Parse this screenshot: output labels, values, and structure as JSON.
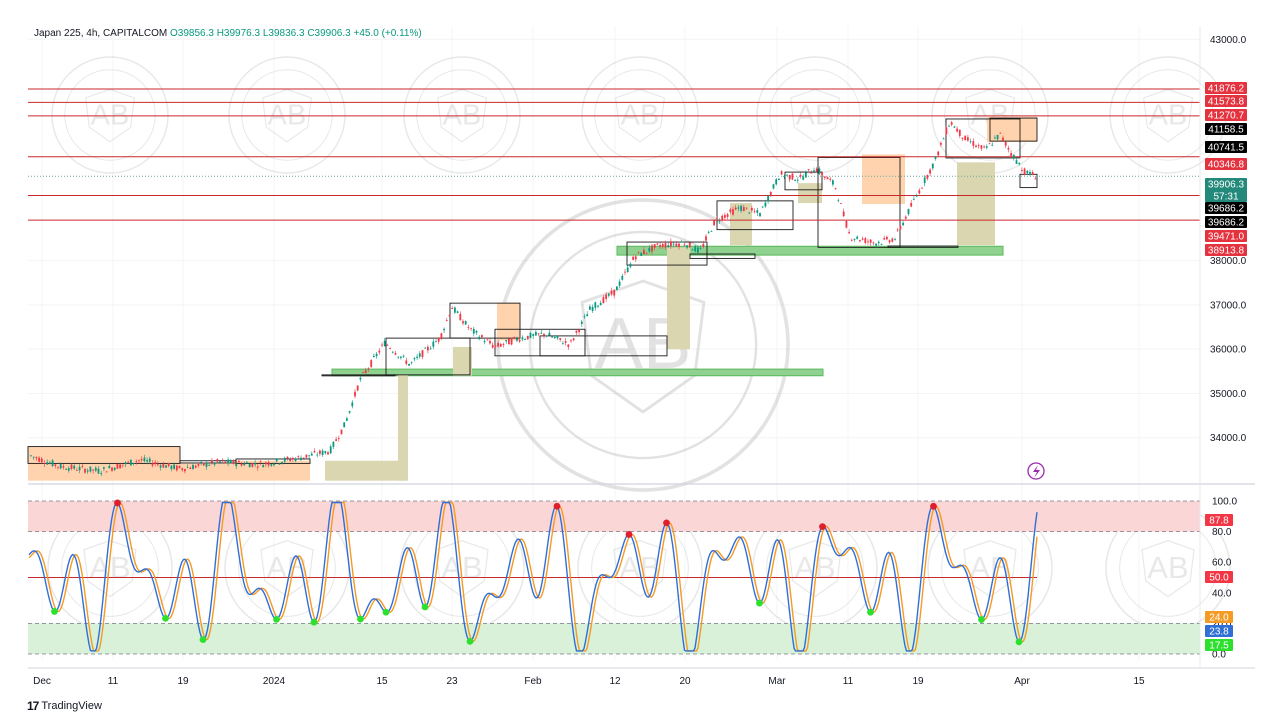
{
  "header": {
    "symbol": "Japan 225, 4h, CAPITALCOM",
    "ohlc": "O39856.3 H39976.3 L39836.3 C39906.3 +45.0 (+0.11%)"
  },
  "footer": {
    "brand": "TradingView",
    "logo": "17"
  },
  "watermark": {
    "arc_text": "ARABIAN BUSINESS ACADEMY",
    "monogram": "AB",
    "arabic_text": "أكاديمية عبد الرحمن"
  },
  "colors": {
    "up": "#089981",
    "down": "#f23645",
    "level_line": "#c9282d",
    "level_label_red": "#e5323f",
    "level_label_black": "#000000",
    "current_price_label": "#22897b",
    "zone_green": "#8fd18f",
    "zone_orange": "#ffd3ae",
    "zone_olive": "#d9d6b0",
    "stoch_k": "#2f6fd6",
    "stoch_d": "#f59a23",
    "overbought_band": "#fbd6d6",
    "oversold_band": "#d8f1d8",
    "signal_red": "#e01f2c",
    "signal_green": "#2ee02e"
  },
  "price_panel": {
    "y_axis": {
      "min": 33000,
      "max": 43300,
      "ticks": [
        "43000.0",
        "38000.0",
        "37000.0",
        "36000.0",
        "35000.0",
        "34000.0"
      ]
    },
    "levels": [
      {
        "value": 41876.2,
        "label": "41876.2",
        "style": "red"
      },
      {
        "value": 41573.8,
        "label": "41573.8",
        "style": "red"
      },
      {
        "value": 41270.7,
        "label": "41270.7",
        "style": "red"
      },
      {
        "value": 41158.5,
        "label": "41158.5",
        "style": "black"
      },
      {
        "value": 40741.5,
        "label": "40741.5",
        "style": "black"
      },
      {
        "value": 40346.8,
        "label": "40346.8",
        "style": "red"
      },
      {
        "value": 39686.2,
        "label": "39686.2",
        "style": "black"
      },
      {
        "value": 39686.2,
        "label": "39686.2",
        "style": "black"
      },
      {
        "value": 39471.0,
        "label": "39471.0",
        "style": "red"
      },
      {
        "value": 38913.8,
        "label": "38913.8",
        "style": "red"
      }
    ],
    "current_price": {
      "value": 39906.3,
      "label": "39906.3",
      "countdown": "57:31"
    }
  },
  "oscillator_panel": {
    "y_axis": {
      "min": 0,
      "max": 100,
      "ticks": [
        "100.0",
        "80.0",
        "60.0",
        "40.0",
        "20.0",
        "0.0"
      ]
    },
    "labels": [
      {
        "value": 87.8,
        "label": "87.8",
        "color": "#f23645"
      },
      {
        "value": 50.0,
        "label": "50.0",
        "color": "#f23645"
      },
      {
        "value": 24.0,
        "label": "24.0",
        "color": "#f59a23"
      },
      {
        "value": 23.8,
        "label": "23.8",
        "color": "#2f6fd6"
      },
      {
        "value": 17.5,
        "label": "17.5",
        "color": "#2ee02e"
      }
    ]
  },
  "x_axis": {
    "ticks": [
      "Dec",
      "11",
      "19",
      "2024",
      "15",
      "23",
      "Feb",
      "12",
      "20",
      "Mar",
      "11",
      "19",
      "Apr",
      "15"
    ]
  },
  "chart_data": {
    "type": "candlestick",
    "title": "Japan 225, 4h, CAPITALCOM",
    "timeframe": "4h",
    "x_range": [
      "Dec",
      "Apr"
    ],
    "ylim": [
      33000,
      43300
    ],
    "close_path": [
      {
        "x": "Dec",
        "close": 33650
      },
      {
        "x": "11",
        "close": 33420
      },
      {
        "x": "19",
        "close": 33520
      },
      {
        "x": "2024",
        "close": 33500
      },
      {
        "x": "15",
        "close": 36050
      },
      {
        "x": "23",
        "close": 36400
      },
      {
        "x": "Feb",
        "close": 36100
      },
      {
        "x": "12",
        "close": 37900
      },
      {
        "x": "20",
        "close": 38500
      },
      {
        "x": "Mar",
        "close": 40000
      },
      {
        "x": "11",
        "close": 38600
      },
      {
        "x": "19",
        "close": 40600
      },
      {
        "x": "Apr",
        "close": 39906.3
      }
    ],
    "zones": [
      {
        "type": "support",
        "from": 38125,
        "to": 38325
      },
      {
        "type": "support",
        "from": 35400,
        "to": 35550
      }
    ],
    "stochastic": {
      "ylim": [
        0,
        100
      ],
      "overbought": 80,
      "oversold": 20,
      "mid": 50,
      "k_last": 23.8,
      "d_last": 24.0,
      "signal_last": 17.5,
      "prev_signal": 87.8
    },
    "grid": true
  }
}
